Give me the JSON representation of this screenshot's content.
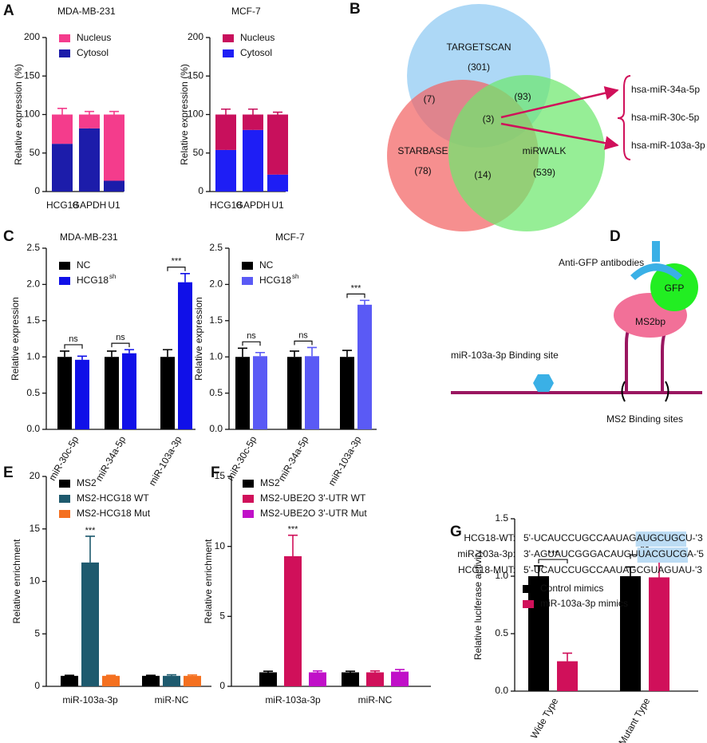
{
  "chart_data": [
    {
      "type": "bar",
      "panel": "A",
      "stacked": true,
      "title": "MDA-MB-231",
      "ylabel": "Relative expression (%)",
      "categories": [
        "HCG18",
        "GAPDH",
        "U1"
      ],
      "series": [
        {
          "name": "Cytosol",
          "color": "#1c1caa",
          "values": [
            62,
            82,
            14
          ],
          "errors": [
            8,
            5,
            4
          ]
        },
        {
          "name": "Nucleus",
          "color": "#f43c8c",
          "values": [
            38,
            18,
            86
          ],
          "errors": [
            8,
            4,
            4
          ]
        }
      ],
      "ylim": [
        0,
        200
      ],
      "yticks": [
        0,
        50,
        100,
        150,
        200
      ]
    },
    {
      "type": "bar",
      "stacked": true,
      "title": "MCF-7",
      "ylabel": "Relative expression (%)",
      "categories": [
        "HCG18",
        "GAPDH",
        "U1"
      ],
      "series": [
        {
          "name": "Cytosol",
          "color": "#1e1ef5",
          "values": [
            54,
            80,
            22
          ],
          "errors": [
            7,
            7,
            3
          ]
        },
        {
          "name": "Nucleus",
          "color": "#c8105c",
          "values": [
            46,
            20,
            78
          ],
          "errors": [
            7,
            7,
            3
          ]
        }
      ],
      "ylim": [
        0,
        200
      ],
      "yticks": [
        0,
        50,
        100,
        150,
        200
      ]
    },
    {
      "type": "venn",
      "panel": "B",
      "sets": [
        {
          "name": "TARGETSCAN",
          "color": "#8ec9f2"
        },
        {
          "name": "STARBASE",
          "color": "#f26464"
        },
        {
          "name": "miRWALK",
          "color": "#6ee86e"
        }
      ],
      "values": [
        301,
        78,
        539,
        7,
        93,
        14,
        3
      ],
      "value_labels": [
        "(301)",
        "(78)",
        "(539)",
        "(7)",
        "(93)",
        "(14)",
        "(3)"
      ],
      "members": [
        "hsa-miR-34a-5p",
        "hsa-miR-30c-5p",
        "hsa-miR-103a-3p"
      ],
      "arrow_color": "#d0105a"
    },
    {
      "type": "bar",
      "panel": "C",
      "title": "MDA-MB-231",
      "ylabel": "Relative expression",
      "categories": [
        "miR-30c-5p",
        "miR-34a-5p",
        "miR-103a-3p"
      ],
      "series": [
        {
          "name": "NC",
          "color": "#000000",
          "values": [
            1.0,
            1.0,
            1.0
          ],
          "errors": [
            0.08,
            0.08,
            0.1
          ]
        },
        {
          "name": "HCG18",
          "name_sup": "sh",
          "color": "#1010e8",
          "values": [
            0.96,
            1.05,
            2.03
          ],
          "errors": [
            0.05,
            0.05,
            0.12
          ]
        }
      ],
      "annotations": [
        "ns",
        "ns",
        "***"
      ],
      "annotation_bracket": true,
      "ylim": [
        0,
        2.5
      ],
      "yticks": [
        {
          "value": 0,
          "label": "0.0"
        },
        0.5,
        {
          "value": 1,
          "label": "1.0"
        },
        1.5,
        {
          "value": 2,
          "label": "2.0"
        },
        2.5
      ]
    },
    {
      "type": "bar",
      "title": "MCF-7",
      "ylabel": "Relative expression",
      "categories": [
        "miR-30c-5p",
        "miR-34a-5p",
        "miR-103a-3p"
      ],
      "series": [
        {
          "name": "NC",
          "color": "#000000",
          "values": [
            1.0,
            1.0,
            1.0
          ],
          "errors": [
            0.12,
            0.08,
            0.09
          ]
        },
        {
          "name": "HCG18",
          "name_sup": "sh",
          "color": "#5a5af5",
          "values": [
            1.01,
            1.01,
            1.72
          ],
          "errors": [
            0.05,
            0.12,
            0.06
          ]
        }
      ],
      "annotations": [
        "ns",
        "ns",
        "***"
      ],
      "annotation_bracket": true,
      "ylim": [
        0,
        2.5
      ],
      "yticks": [
        {
          "value": 0,
          "label": "0.0"
        },
        0.5,
        {
          "value": 1,
          "label": "1.0"
        },
        1.5,
        {
          "value": 2,
          "label": "2.0"
        },
        2.5
      ]
    },
    {
      "type": "diagram",
      "panel": "D",
      "title": "Anti-GFP antibodies",
      "labels": [
        "GFP",
        "MS2bp",
        "miR-103a-3p  Binding site",
        "MS2 Binding sites"
      ]
    },
    {
      "type": "bar",
      "panel": "E",
      "ylabel": "Relative enrichment",
      "categories": [
        "miR-103a-3p",
        "miR-NC"
      ],
      "series": [
        {
          "name": "MS2",
          "color": "#000000",
          "values": [
            1.0,
            1.0
          ],
          "errors": [
            0.05,
            0.05
          ]
        },
        {
          "name": "MS2-HCG18 WT",
          "color": "#1e5a6e",
          "values": [
            11.8,
            1.0
          ],
          "errors": [
            2.5,
            0.1
          ]
        },
        {
          "name": "MS2-HCG18 Mut",
          "color": "#f47020",
          "values": [
            1.0,
            1.0
          ],
          "errors": [
            0.05,
            0.08
          ]
        }
      ],
      "annotations": [
        "***",
        null
      ],
      "ylim": [
        0,
        20
      ],
      "yticks": [
        0,
        5,
        10,
        15,
        20
      ]
    },
    {
      "type": "bar",
      "panel": "F",
      "ylabel": "Relative enrichment",
      "categories": [
        "miR-103a-3p",
        "miR-NC"
      ],
      "series": [
        {
          "name": "MS2",
          "color": "#000000",
          "values": [
            1.0,
            1.0
          ],
          "errors": [
            0.08,
            0.08
          ]
        },
        {
          "name": "MS2-UBE2O 3'-UTR WT",
          "color": "#d0105a",
          "values": [
            9.3,
            1.0
          ],
          "errors": [
            1.5,
            0.1
          ]
        },
        {
          "name": "MS2-UBE2O 3'-UTR Mut",
          "color": "#c010c8",
          "values": [
            1.0,
            1.05
          ],
          "errors": [
            0.1,
            0.15
          ]
        }
      ],
      "annotations": [
        "***",
        null
      ],
      "ylim": [
        0,
        15
      ],
      "yticks": [
        0,
        5,
        10,
        15
      ]
    },
    {
      "type": "bar",
      "panel": "G",
      "ylabel": "Relative luciferase activity",
      "sequences": [
        {
          "label": "HCG18-WT:",
          "parts": [
            "5'-UCAUCCUGCCAAUAG",
            "AUGCUGC",
            "U-'3"
          ],
          "seed_color": "#22bb44",
          "seed_box": true
        },
        {
          "label": "miR-103a-3p:",
          "parts": [
            "3'-AGUAUCGGGACAUGU",
            "UACGUCG",
            "A-'5"
          ],
          "seed_color": "#000000",
          "seed_box": true
        },
        {
          "label": "HCG18-MUT:",
          "parts": [
            "5'-UCAUCCUGCCAAUAG",
            "CGUAGUA",
            "U-'3"
          ],
          "seed_color": "#e02020",
          "seed_box": false
        }
      ],
      "categories": [
        "Wide Type",
        "Mutant Type"
      ],
      "series": [
        {
          "name": "Control mimics",
          "color": "#000000",
          "values": [
            1.0,
            1.0
          ],
          "errors": [
            0.09,
            0.08
          ]
        },
        {
          "name": "miR-103a-3p mimics",
          "color": "#d0105a",
          "values": [
            0.26,
            0.99
          ],
          "errors": [
            0.07,
            0.14
          ]
        }
      ],
      "annotations": [
        "***",
        "ns"
      ],
      "annotation_bracket": true,
      "ylim": [
        0,
        1.5
      ],
      "yticks": [
        {
          "value": 0,
          "label": "0.0"
        },
        0.5,
        {
          "value": 1,
          "label": "1.0"
        },
        1.5
      ]
    }
  ]
}
